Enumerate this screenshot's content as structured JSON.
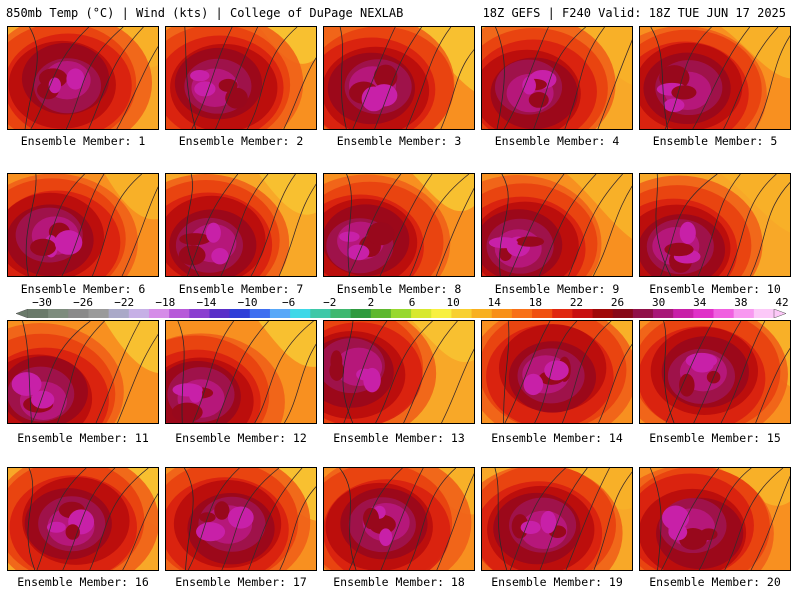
{
  "header": {
    "left_title": "850mb Temp (°C) | Wind (kts) | College of DuPage NEXLAB",
    "right_title": "18Z GEFS | F240 Valid: 18Z TUE JUN 17 2025"
  },
  "colorbar": {
    "labels": [
      "−30",
      "−26",
      "−22",
      "−18",
      "−14",
      "−10",
      "−6",
      "−2",
      "2",
      "6",
      "10",
      "14",
      "18",
      "22",
      "26",
      "30",
      "34",
      "38",
      "42"
    ],
    "colors": [
      "#6a7a6a",
      "#7d8c7d",
      "#8a8a8a",
      "#9a9a9a",
      "#aaa9c8",
      "#c6b0e6",
      "#d58ce8",
      "#b75ad9",
      "#8a3fd0",
      "#5a2fc8",
      "#2f3fd8",
      "#3f6ff0",
      "#58a8f8",
      "#3fd8e8",
      "#3fc8a8",
      "#3fb870",
      "#2f9a3f",
      "#5fb82f",
      "#98d82f",
      "#d8e82f",
      "#f8f040",
      "#f8d030",
      "#f8b020",
      "#f89018",
      "#f87018",
      "#f05010",
      "#e02810",
      "#c81010",
      "#a00808",
      "#880818",
      "#901048",
      "#a81878",
      "#c820a8",
      "#e030c8",
      "#f060e0",
      "#f898f0",
      "#fcc8f8"
    ]
  },
  "panels": [
    {
      "member": "Ensemble Member: 1"
    },
    {
      "member": "Ensemble Member: 2"
    },
    {
      "member": "Ensemble Member: 3"
    },
    {
      "member": "Ensemble Member: 4"
    },
    {
      "member": "Ensemble Member: 5"
    },
    {
      "member": "Ensemble Member: 6"
    },
    {
      "member": "Ensemble Member: 7"
    },
    {
      "member": "Ensemble Member: 8"
    },
    {
      "member": "Ensemble Member: 9"
    },
    {
      "member": "Ensemble Member: 10"
    },
    {
      "member": "Ensemble Member: 11"
    },
    {
      "member": "Ensemble Member: 12"
    },
    {
      "member": "Ensemble Member: 13"
    },
    {
      "member": "Ensemble Member: 14"
    },
    {
      "member": "Ensemble Member: 15"
    },
    {
      "member": "Ensemble Member: 16"
    },
    {
      "member": "Ensemble Member: 17"
    },
    {
      "member": "Ensemble Member: 18"
    },
    {
      "member": "Ensemble Member: 19"
    },
    {
      "member": "Ensemble Member: 20"
    }
  ]
}
